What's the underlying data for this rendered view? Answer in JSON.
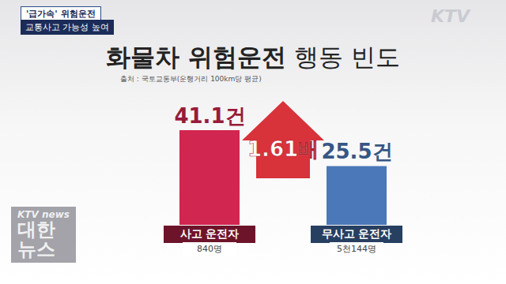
{
  "chart_data": {
    "type": "bar",
    "title": "화물차 위험운전 행동 빈도",
    "subtitle": "출처 : 국토교통부(운행거리 100km당 평균)",
    "categories": [
      "사고 운전자",
      "무사고 운전자"
    ],
    "category_notes": [
      "840명",
      "5천144명"
    ],
    "values": [
      41.1,
      25.5
    ],
    "value_labels": [
      "41.1건",
      "25.5건"
    ],
    "colors": [
      "#d0264f",
      "#4b78b8"
    ],
    "annotation": "1.61배",
    "ylim": [
      0,
      50
    ],
    "data_labels": true,
    "tick_labels": false,
    "grid": false
  },
  "overlay": {
    "tag": "'급가속' 위험운전",
    "subtag": "교통사고 가능성 높여",
    "logo": "KTV",
    "watermark": [
      "KTV news",
      "대한",
      "뉴스"
    ]
  }
}
